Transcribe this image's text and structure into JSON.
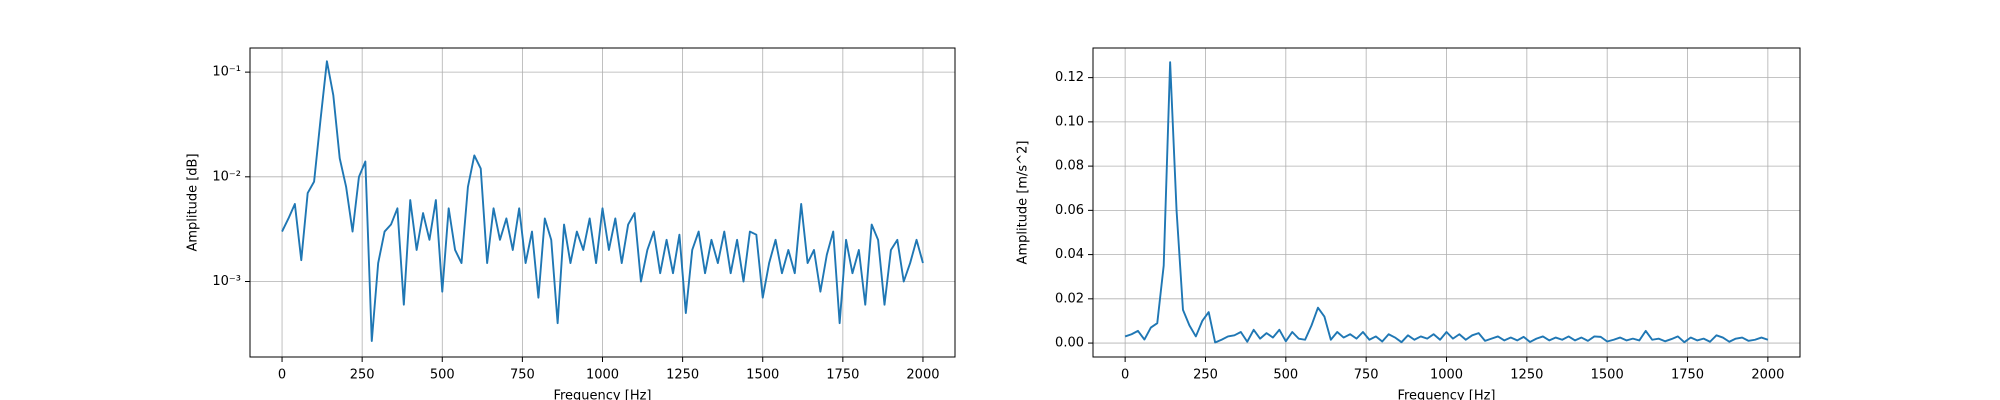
{
  "chart_data": [
    {
      "type": "line",
      "xlabel": "Frequency [Hz]",
      "ylabel": "Amplitude [dB]",
      "log_y": true,
      "grid": true,
      "color": "#1f77b4",
      "xlim": [
        -100,
        2100
      ],
      "xticks": [
        0,
        250,
        500,
        750,
        1000,
        1250,
        1500,
        1750,
        2000
      ],
      "ylim": [
        0.00019,
        0.17
      ],
      "yticks": [
        {
          "value": 0.001,
          "label": "10⁻³"
        },
        {
          "value": 0.01,
          "label": "10⁻²"
        },
        {
          "value": 0.1,
          "label": "10⁻¹"
        }
      ],
      "x": [
        0,
        20,
        40,
        60,
        80,
        100,
        120,
        140,
        160,
        180,
        200,
        220,
        240,
        260,
        280,
        300,
        320,
        340,
        360,
        380,
        400,
        420,
        440,
        460,
        480,
        500,
        520,
        540,
        560,
        580,
        600,
        620,
        640,
        660,
        680,
        700,
        720,
        740,
        760,
        780,
        800,
        820,
        840,
        860,
        880,
        900,
        920,
        940,
        960,
        980,
        1000,
        1020,
        1040,
        1060,
        1080,
        1100,
        1120,
        1140,
        1160,
        1180,
        1200,
        1220,
        1240,
        1260,
        1280,
        1300,
        1320,
        1340,
        1360,
        1380,
        1400,
        1420,
        1440,
        1460,
        1480,
        1500,
        1520,
        1540,
        1560,
        1580,
        1600,
        1620,
        1640,
        1660,
        1680,
        1700,
        1720,
        1740,
        1760,
        1780,
        1800,
        1820,
        1840,
        1860,
        1880,
        1900,
        1920,
        1940,
        1960,
        1980,
        2000
      ],
      "values": [
        0.003,
        0.004,
        0.0055,
        0.0016,
        0.007,
        0.009,
        0.035,
        0.127,
        0.06,
        0.015,
        0.008,
        0.003,
        0.01,
        0.014,
        0.00027,
        0.0015,
        0.003,
        0.0035,
        0.005,
        0.0006,
        0.006,
        0.002,
        0.0045,
        0.0025,
        0.006,
        0.0008,
        0.005,
        0.002,
        0.0015,
        0.008,
        0.016,
        0.012,
        0.0015,
        0.005,
        0.0025,
        0.004,
        0.002,
        0.005,
        0.0015,
        0.003,
        0.0007,
        0.004,
        0.0025,
        0.0004,
        0.0035,
        0.0015,
        0.003,
        0.002,
        0.004,
        0.0015,
        0.005,
        0.002,
        0.004,
        0.0015,
        0.0035,
        0.0045,
        0.001,
        0.002,
        0.003,
        0.0012,
        0.0025,
        0.0012,
        0.0028,
        0.0005,
        0.002,
        0.003,
        0.0012,
        0.0025,
        0.0015,
        0.003,
        0.0012,
        0.0025,
        0.001,
        0.003,
        0.0028,
        0.0007,
        0.0015,
        0.0025,
        0.0012,
        0.002,
        0.0012,
        0.0055,
        0.0015,
        0.002,
        0.0008,
        0.0018,
        0.003,
        0.0004,
        0.0025,
        0.0012,
        0.002,
        0.0006,
        0.0035,
        0.0025,
        0.0006,
        0.002,
        0.0025,
        0.001,
        0.0015,
        0.0025,
        0.0015
      ]
    },
    {
      "type": "line",
      "xlabel": "Frequency [Hz]",
      "ylabel": "Amplitude [m/s^2]",
      "log_y": false,
      "grid": true,
      "color": "#1f77b4",
      "xlim": [
        -100,
        2100
      ],
      "xticks": [
        0,
        250,
        500,
        750,
        1000,
        1250,
        1500,
        1750,
        2000
      ],
      "ylim": [
        -0.0063,
        0.1334
      ],
      "yticks": [
        {
          "value": 0,
          "label": "0.00"
        },
        {
          "value": 0.02,
          "label": "0.02"
        },
        {
          "value": 0.04,
          "label": "0.04"
        },
        {
          "value": 0.06,
          "label": "0.06"
        },
        {
          "value": 0.08,
          "label": "0.08"
        },
        {
          "value": 0.1,
          "label": "0.10"
        },
        {
          "value": 0.12,
          "label": "0.12"
        }
      ],
      "x": [
        0,
        20,
        40,
        60,
        80,
        100,
        120,
        140,
        160,
        180,
        200,
        220,
        240,
        260,
        280,
        300,
        320,
        340,
        360,
        380,
        400,
        420,
        440,
        460,
        480,
        500,
        520,
        540,
        560,
        580,
        600,
        620,
        640,
        660,
        680,
        700,
        720,
        740,
        760,
        780,
        800,
        820,
        840,
        860,
        880,
        900,
        920,
        940,
        960,
        980,
        1000,
        1020,
        1040,
        1060,
        1080,
        1100,
        1120,
        1140,
        1160,
        1180,
        1200,
        1220,
        1240,
        1260,
        1280,
        1300,
        1320,
        1340,
        1360,
        1380,
        1400,
        1420,
        1440,
        1460,
        1480,
        1500,
        1520,
        1540,
        1560,
        1580,
        1600,
        1620,
        1640,
        1660,
        1680,
        1700,
        1720,
        1740,
        1760,
        1780,
        1800,
        1820,
        1840,
        1860,
        1880,
        1900,
        1920,
        1940,
        1960,
        1980,
        2000
      ],
      "values": [
        0.003,
        0.004,
        0.0055,
        0.0016,
        0.007,
        0.009,
        0.035,
        0.127,
        0.06,
        0.015,
        0.008,
        0.003,
        0.01,
        0.014,
        0.00027,
        0.0015,
        0.003,
        0.0035,
        0.005,
        0.0006,
        0.006,
        0.002,
        0.0045,
        0.0025,
        0.006,
        0.0008,
        0.005,
        0.002,
        0.0015,
        0.008,
        0.016,
        0.012,
        0.0015,
        0.005,
        0.0025,
        0.004,
        0.002,
        0.005,
        0.0015,
        0.003,
        0.0007,
        0.004,
        0.0025,
        0.0004,
        0.0035,
        0.0015,
        0.003,
        0.002,
        0.004,
        0.0015,
        0.005,
        0.002,
        0.004,
        0.0015,
        0.0035,
        0.0045,
        0.001,
        0.002,
        0.003,
        0.0012,
        0.0025,
        0.0012,
        0.0028,
        0.0005,
        0.002,
        0.003,
        0.0012,
        0.0025,
        0.0015,
        0.003,
        0.0012,
        0.0025,
        0.001,
        0.003,
        0.0028,
        0.0007,
        0.0015,
        0.0025,
        0.0012,
        0.002,
        0.0012,
        0.0055,
        0.0015,
        0.002,
        0.0008,
        0.0018,
        0.003,
        0.0004,
        0.0025,
        0.0012,
        0.002,
        0.0006,
        0.0035,
        0.0025,
        0.0006,
        0.002,
        0.0025,
        0.001,
        0.0015,
        0.0025,
        0.0015
      ]
    }
  ]
}
